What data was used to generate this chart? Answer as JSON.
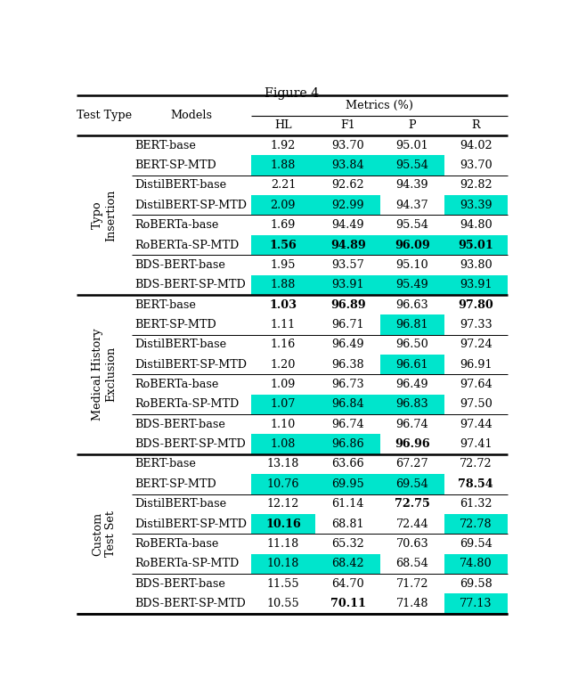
{
  "title": "Figure 4",
  "sections": [
    {
      "label": "Typo\nInsertion",
      "groups": [
        {
          "rows": [
            {
              "model": "BERT-base",
              "HL": "1.92",
              "F1": "93.70",
              "P": "95.01",
              "R": "94.02",
              "highlight": [
                false,
                false,
                false,
                false
              ],
              "bold": [
                false,
                false,
                false,
                false
              ]
            },
            {
              "model": "BERT-SP-MTD",
              "HL": "1.88",
              "F1": "93.84",
              "P": "95.54",
              "R": "93.70",
              "highlight": [
                true,
                true,
                true,
                false
              ],
              "bold": [
                false,
                false,
                false,
                false
              ]
            }
          ]
        },
        {
          "rows": [
            {
              "model": "DistilBERT-base",
              "HL": "2.21",
              "F1": "92.62",
              "P": "94.39",
              "R": "92.82",
              "highlight": [
                false,
                false,
                false,
                false
              ],
              "bold": [
                false,
                false,
                false,
                false
              ]
            },
            {
              "model": "DistilBERT-SP-MTD",
              "HL": "2.09",
              "F1": "92.99",
              "P": "94.37",
              "R": "93.39",
              "highlight": [
                true,
                true,
                false,
                true
              ],
              "bold": [
                false,
                false,
                false,
                false
              ]
            }
          ]
        },
        {
          "rows": [
            {
              "model": "RoBERTa-base",
              "HL": "1.69",
              "F1": "94.49",
              "P": "95.54",
              "R": "94.80",
              "highlight": [
                false,
                false,
                false,
                false
              ],
              "bold": [
                false,
                false,
                false,
                false
              ]
            },
            {
              "model": "RoBERTa-SP-MTD",
              "HL": "1.56",
              "F1": "94.89",
              "P": "96.09",
              "R": "95.01",
              "highlight": [
                true,
                true,
                true,
                true
              ],
              "bold": [
                true,
                true,
                true,
                true
              ]
            }
          ]
        },
        {
          "rows": [
            {
              "model": "BDS-BERT-base",
              "HL": "1.95",
              "F1": "93.57",
              "P": "95.10",
              "R": "93.80",
              "highlight": [
                false,
                false,
                false,
                false
              ],
              "bold": [
                false,
                false,
                false,
                false
              ]
            },
            {
              "model": "BDS-BERT-SP-MTD",
              "HL": "1.88",
              "F1": "93.91",
              "P": "95.49",
              "R": "93.91",
              "highlight": [
                true,
                true,
                true,
                true
              ],
              "bold": [
                false,
                false,
                false,
                false
              ]
            }
          ]
        }
      ]
    },
    {
      "label": "Medical History\nExclusion",
      "groups": [
        {
          "rows": [
            {
              "model": "BERT-base",
              "HL": "1.03",
              "F1": "96.89",
              "P": "96.63",
              "R": "97.80",
              "highlight": [
                false,
                false,
                false,
                false
              ],
              "bold": [
                true,
                true,
                false,
                true
              ]
            },
            {
              "model": "BERT-SP-MTD",
              "HL": "1.11",
              "F1": "96.71",
              "P": "96.81",
              "R": "97.33",
              "highlight": [
                false,
                false,
                true,
                false
              ],
              "bold": [
                false,
                false,
                false,
                false
              ]
            }
          ]
        },
        {
          "rows": [
            {
              "model": "DistilBERT-base",
              "HL": "1.16",
              "F1": "96.49",
              "P": "96.50",
              "R": "97.24",
              "highlight": [
                false,
                false,
                false,
                false
              ],
              "bold": [
                false,
                false,
                false,
                false
              ]
            },
            {
              "model": "DistilBERT-SP-MTD",
              "HL": "1.20",
              "F1": "96.38",
              "P": "96.61",
              "R": "96.91",
              "highlight": [
                false,
                false,
                true,
                false
              ],
              "bold": [
                false,
                false,
                false,
                false
              ]
            }
          ]
        },
        {
          "rows": [
            {
              "model": "RoBERTa-base",
              "HL": "1.09",
              "F1": "96.73",
              "P": "96.49",
              "R": "97.64",
              "highlight": [
                false,
                false,
                false,
                false
              ],
              "bold": [
                false,
                false,
                false,
                false
              ]
            },
            {
              "model": "RoBERTa-SP-MTD",
              "HL": "1.07",
              "F1": "96.84",
              "P": "96.83",
              "R": "97.50",
              "highlight": [
                true,
                true,
                true,
                false
              ],
              "bold": [
                false,
                false,
                false,
                false
              ]
            }
          ]
        },
        {
          "rows": [
            {
              "model": "BDS-BERT-base",
              "HL": "1.10",
              "F1": "96.74",
              "P": "96.74",
              "R": "97.44",
              "highlight": [
                false,
                false,
                false,
                false
              ],
              "bold": [
                false,
                false,
                false,
                false
              ]
            },
            {
              "model": "BDS-BERT-SP-MTD",
              "HL": "1.08",
              "F1": "96.86",
              "P": "96.96",
              "R": "97.41",
              "highlight": [
                true,
                true,
                false,
                false
              ],
              "bold": [
                false,
                false,
                true,
                false
              ]
            }
          ]
        }
      ]
    },
    {
      "label": "Custom\nTest Set",
      "groups": [
        {
          "rows": [
            {
              "model": "BERT-base",
              "HL": "13.18",
              "F1": "63.66",
              "P": "67.27",
              "R": "72.72",
              "highlight": [
                false,
                false,
                false,
                false
              ],
              "bold": [
                false,
                false,
                false,
                false
              ]
            },
            {
              "model": "BERT-SP-MTD",
              "HL": "10.76",
              "F1": "69.95",
              "P": "69.54",
              "R": "78.54",
              "highlight": [
                true,
                true,
                true,
                false
              ],
              "bold": [
                false,
                false,
                false,
                true
              ]
            }
          ]
        },
        {
          "rows": [
            {
              "model": "DistilBERT-base",
              "HL": "12.12",
              "F1": "61.14",
              "P": "72.75",
              "R": "61.32",
              "highlight": [
                false,
                false,
                false,
                false
              ],
              "bold": [
                false,
                false,
                true,
                false
              ]
            },
            {
              "model": "DistilBERT-SP-MTD",
              "HL": "10.16",
              "F1": "68.81",
              "P": "72.44",
              "R": "72.78",
              "highlight": [
                true,
                false,
                false,
                true
              ],
              "bold": [
                true,
                false,
                false,
                false
              ]
            }
          ]
        },
        {
          "rows": [
            {
              "model": "RoBERTa-base",
              "HL": "11.18",
              "F1": "65.32",
              "P": "70.63",
              "R": "69.54",
              "highlight": [
                false,
                false,
                false,
                false
              ],
              "bold": [
                false,
                false,
                false,
                false
              ]
            },
            {
              "model": "RoBERTa-SP-MTD",
              "HL": "10.18",
              "F1": "68.42",
              "P": "68.54",
              "R": "74.80",
              "highlight": [
                true,
                true,
                false,
                true
              ],
              "bold": [
                false,
                false,
                false,
                false
              ]
            }
          ]
        },
        {
          "rows": [
            {
              "model": "BDS-BERT-base",
              "HL": "11.55",
              "F1": "64.70",
              "P": "71.72",
              "R": "69.58",
              "highlight": [
                false,
                false,
                false,
                false
              ],
              "bold": [
                false,
                false,
                false,
                false
              ]
            },
            {
              "model": "BDS-BERT-SP-MTD",
              "HL": "10.55",
              "F1": "70.11",
              "P": "71.48",
              "R": "77.13",
              "highlight": [
                false,
                false,
                false,
                true
              ],
              "bold": [
                false,
                true,
                false,
                false
              ]
            }
          ]
        }
      ]
    }
  ],
  "highlight_color": "#00E5CC",
  "bg_color": "#FFFFFF",
  "font_size": 9.2
}
